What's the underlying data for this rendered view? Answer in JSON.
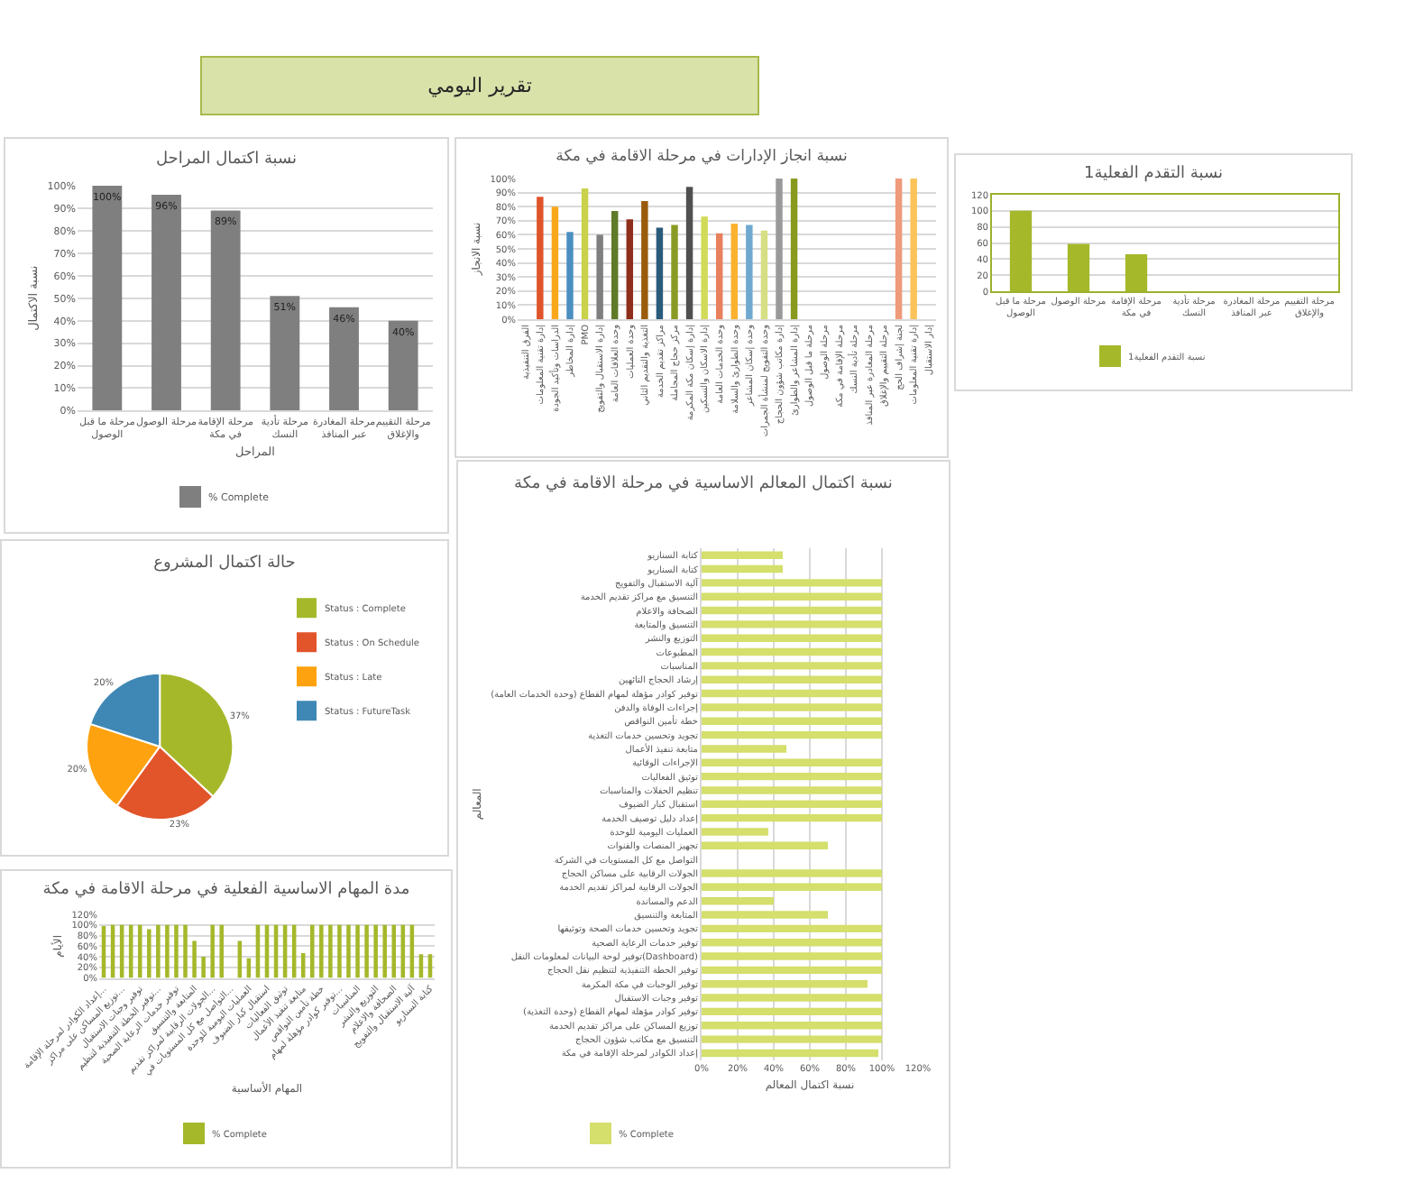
{
  "chart_data": [
    {
      "type": "other",
      "title": "تقرير اليومي"
    },
    {
      "type": "bar",
      "title": "نسبة اكتمال المراحل",
      "xlabel": "المراحل",
      "ylabel": "نسبة الاكتمال",
      "categories": [
        "مرحلة ما قبل الوصول",
        "مرحلة الوصول",
        "مرحلة الإقامة في مكة",
        "مرحلة تأدية النسك",
        "مرحلة المغادرة عبر المنافذ",
        "مرحلة التقييم والإغلاق"
      ],
      "series": [
        {
          "name": "% Complete",
          "color": "#7f7f7f",
          "values": [
            100,
            96,
            89,
            51,
            46,
            40
          ],
          "value_labels": [
            "100%",
            "96%",
            "89%",
            "51%",
            "46%",
            "40%"
          ]
        }
      ],
      "ylim": [
        0,
        100
      ],
      "yticks": [
        {
          "value": 0,
          "label": "0%"
        },
        {
          "value": 10,
          "label": "10%"
        },
        {
          "value": 20,
          "label": "20%"
        },
        {
          "value": 30,
          "label": "30%"
        },
        {
          "value": 40,
          "label": "40%"
        },
        {
          "value": 50,
          "label": "50%"
        },
        {
          "value": 60,
          "label": "60%"
        },
        {
          "value": 70,
          "label": "70%"
        },
        {
          "value": 80,
          "label": "80%"
        },
        {
          "value": 90,
          "label": "90%"
        },
        {
          "value": 100,
          "label": "100%"
        }
      ],
      "grid": "y",
      "legend": "bottom"
    },
    {
      "type": "bar",
      "title": "نسبة انجاز الإدارات في مرحلة الاقامة في مكة",
      "ylabel": "نسبة الانجاز",
      "categories": [
        "الفرق التنفيذية",
        "إدارة تقنية المعلومات",
        "الدراسات وتأكيد الجودة",
        "إدارة المخاطر",
        "PMO",
        "إدارة الاستقبال والتفويج",
        "وحدة العلاقات العامة",
        "وحدة العمليات",
        "التغذية والتقديم الثاني",
        "مراكز تقديم الخدمة",
        "مركز حجاج المجاملة",
        "إدارة إسكان مكة المكرمة",
        "إدارة الاسكان والتسكين",
        "وحدة الخدمات العامة",
        "وحدة الطوارئ والسلامة",
        "وحدة إسكان المشاعر",
        "وحدة التفويج لمنشأة الجمرات",
        "إدارة مكاتب شؤون الحجاج",
        "إدارة المشاعر والطوارئ",
        "مرحلة ما قبل الوصول",
        "مرحلة الوصول",
        "مرحلة الإقامة في مكة",
        "مرحلة تأدية النسك",
        "مرحلة المغادرة عبر المنافذ",
        "مرحلة التقييم والإغلاق",
        "لجنة إشراف الحج",
        "إدارة تقنية المعلومات",
        "إدار الاستقبال"
      ],
      "values": [
        null,
        87,
        80,
        62,
        93,
        60,
        77,
        71,
        84,
        65,
        67,
        94,
        73,
        61,
        68,
        67,
        63,
        100,
        100,
        null,
        null,
        null,
        null,
        null,
        null,
        100,
        100,
        null
      ],
      "colors": [
        null,
        "#e0542a",
        "#fba71b",
        "#4a8fc0",
        "#c9d24a",
        "#7f7f7f",
        "#5f7a28",
        "#8f2e1a",
        "#9a5c0c",
        "#2b5b7a",
        "#8a9b25",
        "#505050",
        "#d2db58",
        "#e8805e",
        "#fbb12d",
        "#6fa9cf",
        "#d6df83",
        "#999999",
        "#8a9a1e",
        null,
        null,
        null,
        null,
        null,
        null,
        "#ef9a7a",
        "#fcc35a",
        null
      ],
      "ylim": [
        0,
        100
      ],
      "yticks": [
        {
          "value": 0,
          "label": "0%"
        },
        {
          "value": 10,
          "label": "10%"
        },
        {
          "value": 20,
          "label": "20%"
        },
        {
          "value": 30,
          "label": "30%"
        },
        {
          "value": 40,
          "label": "40%"
        },
        {
          "value": 50,
          "label": "50%"
        },
        {
          "value": 60,
          "label": "60%"
        },
        {
          "value": 70,
          "label": "70%"
        },
        {
          "value": 80,
          "label": "80%"
        },
        {
          "value": 90,
          "label": "90%"
        },
        {
          "value": 100,
          "label": "100%"
        }
      ],
      "grid": "y"
    },
    {
      "type": "bar",
      "title": "نسبة التقدم الفعلية1",
      "categories": [
        "مرحلة ما قبل الوصول",
        "مرحلة الوصول",
        "مرحلة الإقامة في مكة",
        "مرحلة تأدية النسك",
        "مرحلة المغادرة عبر المنافذ",
        "مرحلة التقييم والإغلاق"
      ],
      "series": [
        {
          "name": "نسبة التقدم الفعلية1",
          "color": "#a5b82a",
          "values": [
            100,
            59,
            46,
            null,
            null,
            null
          ]
        }
      ],
      "ylim": [
        0,
        120
      ],
      "yticks": [
        0,
        20,
        40,
        60,
        80,
        100,
        120
      ],
      "grid": "y",
      "legend": "bottom"
    },
    {
      "type": "pie",
      "title": "حالة اكتمال المشروع",
      "categories": [
        "Status : Complete",
        "Status : On Schedule",
        "Status : Late",
        "Status : FutureTask"
      ],
      "values": [
        37,
        23,
        20,
        20
      ],
      "value_labels": [
        "37%",
        "23%",
        "20%",
        "20%"
      ],
      "colors": [
        "#a5b82a",
        "#e2542a",
        "#ffa20f",
        "#3f88b5"
      ],
      "legend": "top right"
    },
    {
      "type": "bar",
      "orientation": "horizontal",
      "title": "نسبة اكتمال المعالم الاساسية في مرحلة الاقامة في مكة",
      "xlabel": "نسبة اكتمال المعالم",
      "ylabel": "المعالم",
      "categories": [
        "كتابة السناريو",
        "كتابة السناريو",
        "آلية الاستقبال والتفويج",
        "التنسيق مع مراكز تقديم الخدمة",
        "الصحافة والاعلام",
        "التنسيق والمتابعة",
        "التوزيع والنشر",
        "المطبوعات",
        "المناسبات",
        "إرشاد الحجاج التائهين",
        "توفير كوادر مؤهلة لمهام القطاع (وحدة الخدمات العامة)",
        "إجراءات الوفاة والدفن",
        "خطة تأمين النواقص",
        "تجويد وتحسين خدمات التغذية",
        "متابعة تنفيذ الأعمال",
        "الإجراءات الوقائية",
        "توثيق الفعاليات",
        "تنظيم الحفلات والمناسبات",
        "استقبال كبار الضيوف",
        "إعداد دليل توصيف الخدمة",
        "العمليات اليومية للوحدة",
        "تجهيز المنصات والقنوات",
        "التواصل مع كل المستويات في الشركة",
        "الجولات الرقابية على مساكن الحجاج",
        "الجولات الرقابية لمراكز تقديم الخدمة",
        "الدعم والمساندة",
        "المتابعة والتنسيق",
        "تجويد وتحسين خدمات الصحة وتوثيقها",
        "توفير خدمات الرعاية الصحية",
        "توفير لوحة البيانات لمعلومات النقل(Dashboard)",
        "توفير الخطة التنفيذية لتنظيم نقل الحجاج",
        "توفير الوجبات في مكة المكرمة",
        "توفير وجبات الاستقبال",
        "توفير كوادر مؤهلة لمهام القطاع (وحدة التغذية)",
        "توزيع المساكن على مراكز تقديم الخدمة",
        "التنسيق مع مكاتب شؤون الحجاج",
        "إعداد الكوادر لمرحلة الإقامة في مكة"
      ],
      "series": [
        {
          "name": "% Complete",
          "color": "#d4df6c",
          "values": [
            45,
            45,
            100,
            100,
            100,
            100,
            100,
            100,
            100,
            100,
            100,
            100,
            100,
            100,
            47,
            100,
            100,
            100,
            100,
            100,
            37,
            70,
            0,
            100,
            100,
            40,
            70,
            100,
            100,
            100,
            100,
            92,
            100,
            100,
            100,
            100,
            98
          ]
        }
      ],
      "xlim": [
        0,
        120
      ],
      "xticks": [
        {
          "value": 0,
          "label": "0%"
        },
        {
          "value": 20,
          "label": "20%"
        },
        {
          "value": 40,
          "label": "40%"
        },
        {
          "value": 60,
          "label": "60%"
        },
        {
          "value": 80,
          "label": "80%"
        },
        {
          "value": 100,
          "label": "100%"
        },
        {
          "value": 120,
          "label": "120%"
        }
      ],
      "grid": "x",
      "legend": "bottom left"
    },
    {
      "type": "bar",
      "title": "مدة المهام الاساسية الفعلية في مرحلة الاقامة في مكة",
      "xlabel": "المهام الأساسية",
      "ylabel": "الأيام",
      "categories": [
        "إعداد الكوادر لمرحلة الإقامة...",
        null,
        "توزيع المساكن على مراكز...",
        null,
        "توفير وجبات الاستقبال",
        null,
        "توفير الخطة التنفيذية لتنظيم...",
        null,
        "توفير خدمات الرعاية الصحية",
        null,
        "المتابعة والتنسيق",
        null,
        "الجولات الرقابية لمراكز تقديم...",
        null,
        "التواصل مع كل المستويات في...",
        null,
        "العمليات اليومية للوحدة",
        null,
        "استقبال كبار الضيوف",
        null,
        "توثيق الفعاليات",
        null,
        "متابعة تنفيذ الأعمال",
        null,
        "خطة تأمين النواقص",
        null,
        "توفير كوادر مؤهلة لمهام...",
        null,
        "المناسبات",
        null,
        "التوزيع والنشر",
        null,
        "الصحافة والاعلام",
        null,
        "آلية الاستقبال والتفويج",
        null,
        "كتابة السناريو"
      ],
      "series": [
        {
          "name": "% Complete",
          "color": "#a5b82a",
          "values": [
            98,
            100,
            100,
            100,
            100,
            92,
            100,
            100,
            100,
            100,
            70,
            40,
            100,
            100,
            0,
            70,
            37,
            100,
            100,
            100,
            100,
            100,
            47,
            100,
            100,
            100,
            100,
            100,
            100,
            100,
            100,
            100,
            100,
            100,
            100,
            45,
            45
          ]
        }
      ],
      "ylim": [
        0,
        120
      ],
      "yticks": [
        {
          "value": 0,
          "label": "0%"
        },
        {
          "value": 20,
          "label": "20%"
        },
        {
          "value": 40,
          "label": "40%"
        },
        {
          "value": 60,
          "label": "60%"
        },
        {
          "value": 80,
          "label": "80%"
        },
        {
          "value": 100,
          "label": "100%"
        },
        {
          "value": 120,
          "label": "120%"
        }
      ],
      "grid": "y",
      "legend": "bottom"
    }
  ]
}
